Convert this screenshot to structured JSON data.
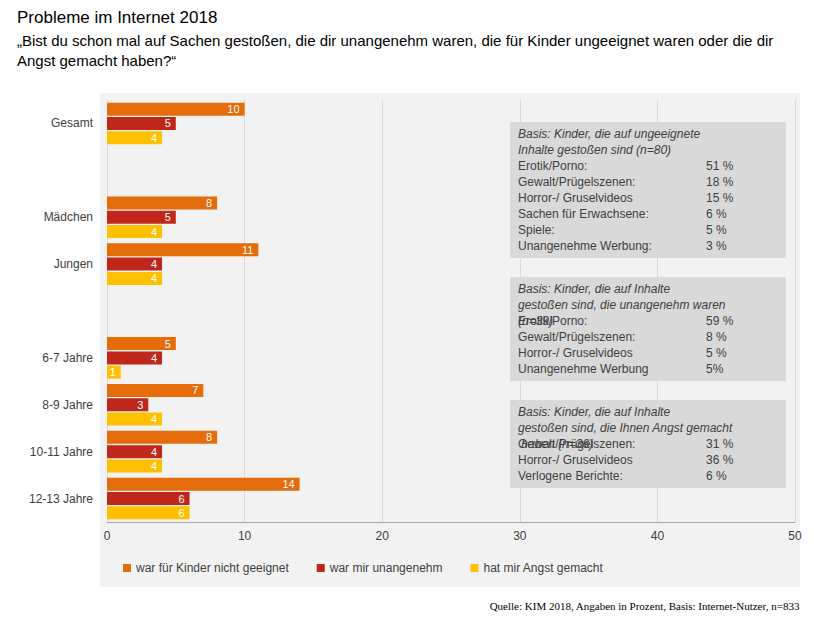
{
  "chart_data": {
    "type": "bar",
    "orientation": "horizontal",
    "title": "Probleme im Internet 2018",
    "subtitle": "„Bist du schon mal auf Sachen gestoßen, die dir unangenehm waren, die für Kinder ungeeignet waren oder die dir Angst gemacht haben?“",
    "categories": [
      "Gesamt",
      null,
      "Mädchen",
      "Jungen",
      null,
      "6-7 Jahre",
      "8-9 Jahre",
      "10-11 Jahre",
      "12-13 Jahre"
    ],
    "series": [
      {
        "name": "war für Kinder nicht geeignet",
        "color": "#e46c0a",
        "values": [
          10,
          null,
          8,
          11,
          null,
          5,
          7,
          8,
          14
        ]
      },
      {
        "name": "war mir unangenehm",
        "color": "#c0271b",
        "values": [
          5,
          null,
          5,
          4,
          null,
          4,
          3,
          4,
          6
        ]
      },
      {
        "name": "hat mir Angst gemacht",
        "color": "#ffc000",
        "values": [
          4,
          null,
          4,
          4,
          null,
          1,
          4,
          4,
          6
        ]
      }
    ],
    "xlim": [
      0,
      50
    ],
    "xticks": [
      0,
      10,
      20,
      30,
      40,
      50
    ],
    "grid": true,
    "legend": "bottom left",
    "data_labels": true,
    "annotations": [
      {
        "title": "Basis: Kinder, die auf ungeeignete Inhalte gestoßen sind (n=80)",
        "rows": [
          {
            "label": "Erotik/Porno:",
            "value": "51 %"
          },
          {
            "label": "Gewalt/Prügelszenen:",
            "value": "18 %"
          },
          {
            "label": "Horror-/ Gruselvideos",
            "value": "15 %"
          },
          {
            "label": "Sachen für Erwachsene:",
            "value": "6 %"
          },
          {
            "label": "Spiele:",
            "value": "5 %"
          },
          {
            "label": "Unangenehme Werbung:",
            "value": "3 %"
          }
        ]
      },
      {
        "title": "Basis: Kinder, die auf Inhalte gestoßen sind, die unangenehm waren (n=39)",
        "rows": [
          {
            "label": "Erotik/Porno:",
            "value": "59 %"
          },
          {
            "label": "Gewalt/Prügelszenen:",
            "value": "8 %"
          },
          {
            "label": "Horror-/ Gruselvideos",
            "value": "5 %"
          },
          {
            "label": "Unangenehme Werbung",
            "value": "5%"
          }
        ]
      },
      {
        "title": "Basis: Kinder, die auf Inhalte gestoßen sind, die Ihnen Angst gemacht haben (n=36)",
        "rows": [
          {
            "label": "Gewalt/Prügelszenen:",
            "value": "31 %"
          },
          {
            "label": "Horror-/ Gruselvideos",
            "value": "36 %"
          },
          {
            "label": "Verlogene Berichte:",
            "value": "6 %"
          }
        ]
      }
    ],
    "source": "Quelle: KIM 2018, Angaben in Prozent, Basis: Internet-Nutzer, n=833"
  }
}
